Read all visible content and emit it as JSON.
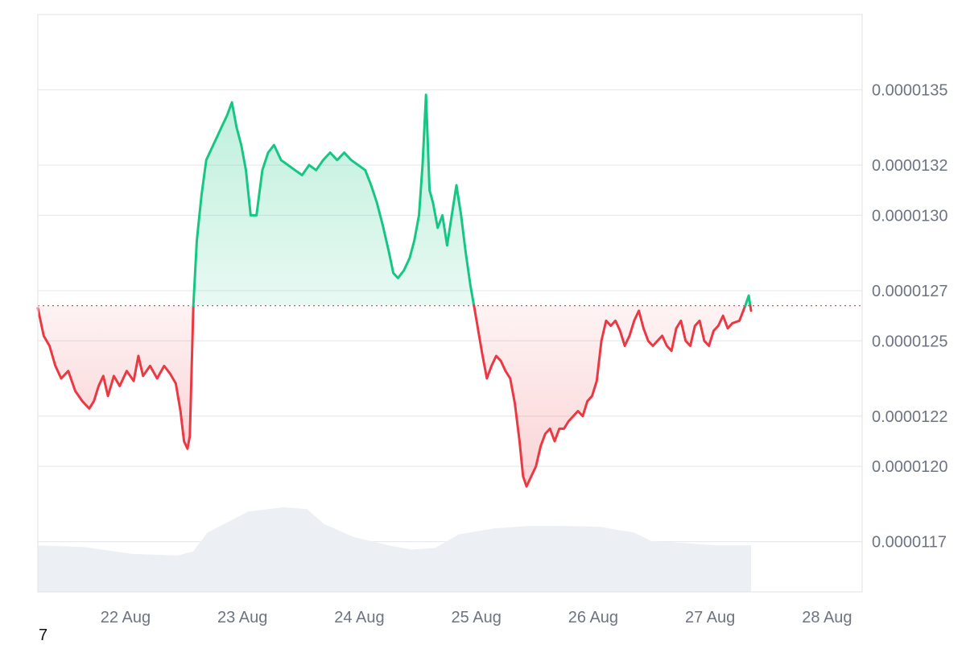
{
  "chart_data": {
    "type": "area",
    "y_ticks": [
      "0.0000117",
      "0.0000120",
      "0.0000122",
      "0.0000125",
      "0.0000127",
      "0.0000130",
      "0.0000132",
      "0.0000135"
    ],
    "y_tick_values": [
      1.17e-05,
      1.2e-05,
      1.22e-05,
      1.25e-05,
      1.27e-05,
      1.3e-05,
      1.32e-05,
      1.35e-05
    ],
    "x_ticks": [
      "22 Aug",
      "23 Aug",
      "24 Aug",
      "25 Aug",
      "26 Aug",
      "27 Aug",
      "28 Aug"
    ],
    "x_tick_positions": [
      0.75,
      1.75,
      2.75,
      3.75,
      4.75,
      5.75,
      6.75
    ],
    "x_range": [
      0,
      7.05
    ],
    "ylim": [
      1.15e-05,
      1.38e-05
    ],
    "baseline": 1.264e-05,
    "grid": true,
    "colors": {
      "above": "#16c784",
      "below": "#ea3943",
      "volume": "#eceff3"
    },
    "price_points": [
      [
        0.0,
        1.263e-05
      ],
      [
        0.05,
        1.252e-05
      ],
      [
        0.1,
        1.248e-05
      ],
      [
        0.15,
        1.24e-05
      ],
      [
        0.2,
        1.235e-05
      ],
      [
        0.26,
        1.238e-05
      ],
      [
        0.32,
        1.23e-05
      ],
      [
        0.38,
        1.226e-05
      ],
      [
        0.44,
        1.223e-05
      ],
      [
        0.48,
        1.226e-05
      ],
      [
        0.52,
        1.232e-05
      ],
      [
        0.56,
        1.236e-05
      ],
      [
        0.6,
        1.228e-05
      ],
      [
        0.65,
        1.236e-05
      ],
      [
        0.7,
        1.232e-05
      ],
      [
        0.76,
        1.238e-05
      ],
      [
        0.82,
        1.234e-05
      ],
      [
        0.86,
        1.244e-05
      ],
      [
        0.9,
        1.236e-05
      ],
      [
        0.96,
        1.24e-05
      ],
      [
        1.02,
        1.235e-05
      ],
      [
        1.08,
        1.24e-05
      ],
      [
        1.13,
        1.237e-05
      ],
      [
        1.18,
        1.233e-05
      ],
      [
        1.22,
        1.222e-05
      ],
      [
        1.25,
        1.21e-05
      ],
      [
        1.28,
        1.207e-05
      ],
      [
        1.3,
        1.212e-05
      ],
      [
        1.33,
        1.264e-05
      ],
      [
        1.36,
        1.29e-05
      ],
      [
        1.4,
        1.308e-05
      ],
      [
        1.44,
        1.322e-05
      ],
      [
        1.5,
        1.328e-05
      ],
      [
        1.56,
        1.334e-05
      ],
      [
        1.62,
        1.34e-05
      ],
      [
        1.66,
        1.345e-05
      ],
      [
        1.7,
        1.335e-05
      ],
      [
        1.74,
        1.328e-05
      ],
      [
        1.78,
        1.318e-05
      ],
      [
        1.82,
        1.3e-05
      ],
      [
        1.87,
        1.3e-05
      ],
      [
        1.92,
        1.318e-05
      ],
      [
        1.97,
        1.325e-05
      ],
      [
        2.02,
        1.328e-05
      ],
      [
        2.08,
        1.322e-05
      ],
      [
        2.14,
        1.32e-05
      ],
      [
        2.2,
        1.318e-05
      ],
      [
        2.26,
        1.316e-05
      ],
      [
        2.32,
        1.32e-05
      ],
      [
        2.38,
        1.318e-05
      ],
      [
        2.44,
        1.322e-05
      ],
      [
        2.5,
        1.325e-05
      ],
      [
        2.56,
        1.322e-05
      ],
      [
        2.62,
        1.325e-05
      ],
      [
        2.68,
        1.322e-05
      ],
      [
        2.74,
        1.32e-05
      ],
      [
        2.8,
        1.318e-05
      ],
      [
        2.85,
        1.312e-05
      ],
      [
        2.9,
        1.305e-05
      ],
      [
        2.95,
        1.296e-05
      ],
      [
        3.0,
        1.286e-05
      ],
      [
        3.04,
        1.277e-05
      ],
      [
        3.08,
        1.275e-05
      ],
      [
        3.13,
        1.278e-05
      ],
      [
        3.18,
        1.283e-05
      ],
      [
        3.22,
        1.29e-05
      ],
      [
        3.26,
        1.3e-05
      ],
      [
        3.29,
        1.32e-05
      ],
      [
        3.32,
        1.348e-05
      ],
      [
        3.35,
        1.31e-05
      ],
      [
        3.38,
        1.305e-05
      ],
      [
        3.42,
        1.295e-05
      ],
      [
        3.46,
        1.3e-05
      ],
      [
        3.5,
        1.288e-05
      ],
      [
        3.54,
        1.3e-05
      ],
      [
        3.58,
        1.312e-05
      ],
      [
        3.62,
        1.3e-05
      ],
      [
        3.66,
        1.285e-05
      ],
      [
        3.7,
        1.272e-05
      ],
      [
        3.73,
        1.264e-05
      ],
      [
        3.76,
        1.256e-05
      ],
      [
        3.8,
        1.245e-05
      ],
      [
        3.84,
        1.235e-05
      ],
      [
        3.88,
        1.24e-05
      ],
      [
        3.92,
        1.244e-05
      ],
      [
        3.96,
        1.242e-05
      ],
      [
        4.0,
        1.238e-05
      ],
      [
        4.04,
        1.235e-05
      ],
      [
        4.08,
        1.225e-05
      ],
      [
        4.12,
        1.21e-05
      ],
      [
        4.15,
        1.196e-05
      ],
      [
        4.18,
        1.192e-05
      ],
      [
        4.22,
        1.196e-05
      ],
      [
        4.26,
        1.2e-05
      ],
      [
        4.3,
        1.208e-05
      ],
      [
        4.34,
        1.213e-05
      ],
      [
        4.38,
        1.215e-05
      ],
      [
        4.42,
        1.21e-05
      ],
      [
        4.46,
        1.215e-05
      ],
      [
        4.5,
        1.215e-05
      ],
      [
        4.54,
        1.218e-05
      ],
      [
        4.58,
        1.22e-05
      ],
      [
        4.62,
        1.222e-05
      ],
      [
        4.66,
        1.22e-05
      ],
      [
        4.7,
        1.226e-05
      ],
      [
        4.74,
        1.228e-05
      ],
      [
        4.78,
        1.234e-05
      ],
      [
        4.82,
        1.25e-05
      ],
      [
        4.86,
        1.258e-05
      ],
      [
        4.9,
        1.256e-05
      ],
      [
        4.94,
        1.258e-05
      ],
      [
        4.98,
        1.254e-05
      ],
      [
        5.02,
        1.248e-05
      ],
      [
        5.06,
        1.252e-05
      ],
      [
        5.1,
        1.258e-05
      ],
      [
        5.14,
        1.262e-05
      ],
      [
        5.18,
        1.255e-05
      ],
      [
        5.22,
        1.25e-05
      ],
      [
        5.26,
        1.248e-05
      ],
      [
        5.3,
        1.25e-05
      ],
      [
        5.34,
        1.252e-05
      ],
      [
        5.38,
        1.248e-05
      ],
      [
        5.42,
        1.246e-05
      ],
      [
        5.46,
        1.255e-05
      ],
      [
        5.5,
        1.258e-05
      ],
      [
        5.54,
        1.25e-05
      ],
      [
        5.58,
        1.248e-05
      ],
      [
        5.62,
        1.256e-05
      ],
      [
        5.66,
        1.258e-05
      ],
      [
        5.7,
        1.25e-05
      ],
      [
        5.74,
        1.248e-05
      ],
      [
        5.78,
        1.254e-05
      ],
      [
        5.82,
        1.256e-05
      ],
      [
        5.86,
        1.26e-05
      ],
      [
        5.9,
        1.255e-05
      ],
      [
        5.94,
        1.257e-05
      ],
      [
        6.0,
        1.258e-05
      ],
      [
        6.05,
        1.264e-05
      ],
      [
        6.08,
        1.268e-05
      ],
      [
        6.1,
        1.262e-05
      ]
    ],
    "volume_points": [
      [
        0.0,
        0.55
      ],
      [
        0.4,
        0.53
      ],
      [
        0.8,
        0.45
      ],
      [
        1.2,
        0.43
      ],
      [
        1.33,
        0.48
      ],
      [
        1.45,
        0.7
      ],
      [
        1.8,
        0.95
      ],
      [
        2.1,
        1.0
      ],
      [
        2.3,
        0.98
      ],
      [
        2.45,
        0.8
      ],
      [
        2.7,
        0.65
      ],
      [
        3.0,
        0.55
      ],
      [
        3.2,
        0.5
      ],
      [
        3.4,
        0.52
      ],
      [
        3.6,
        0.68
      ],
      [
        3.9,
        0.75
      ],
      [
        4.2,
        0.78
      ],
      [
        4.5,
        0.78
      ],
      [
        4.8,
        0.77
      ],
      [
        5.1,
        0.7
      ],
      [
        5.25,
        0.6
      ],
      [
        5.5,
        0.58
      ],
      [
        5.8,
        0.55
      ],
      [
        6.1,
        0.55
      ]
    ]
  },
  "corner_label": "7"
}
